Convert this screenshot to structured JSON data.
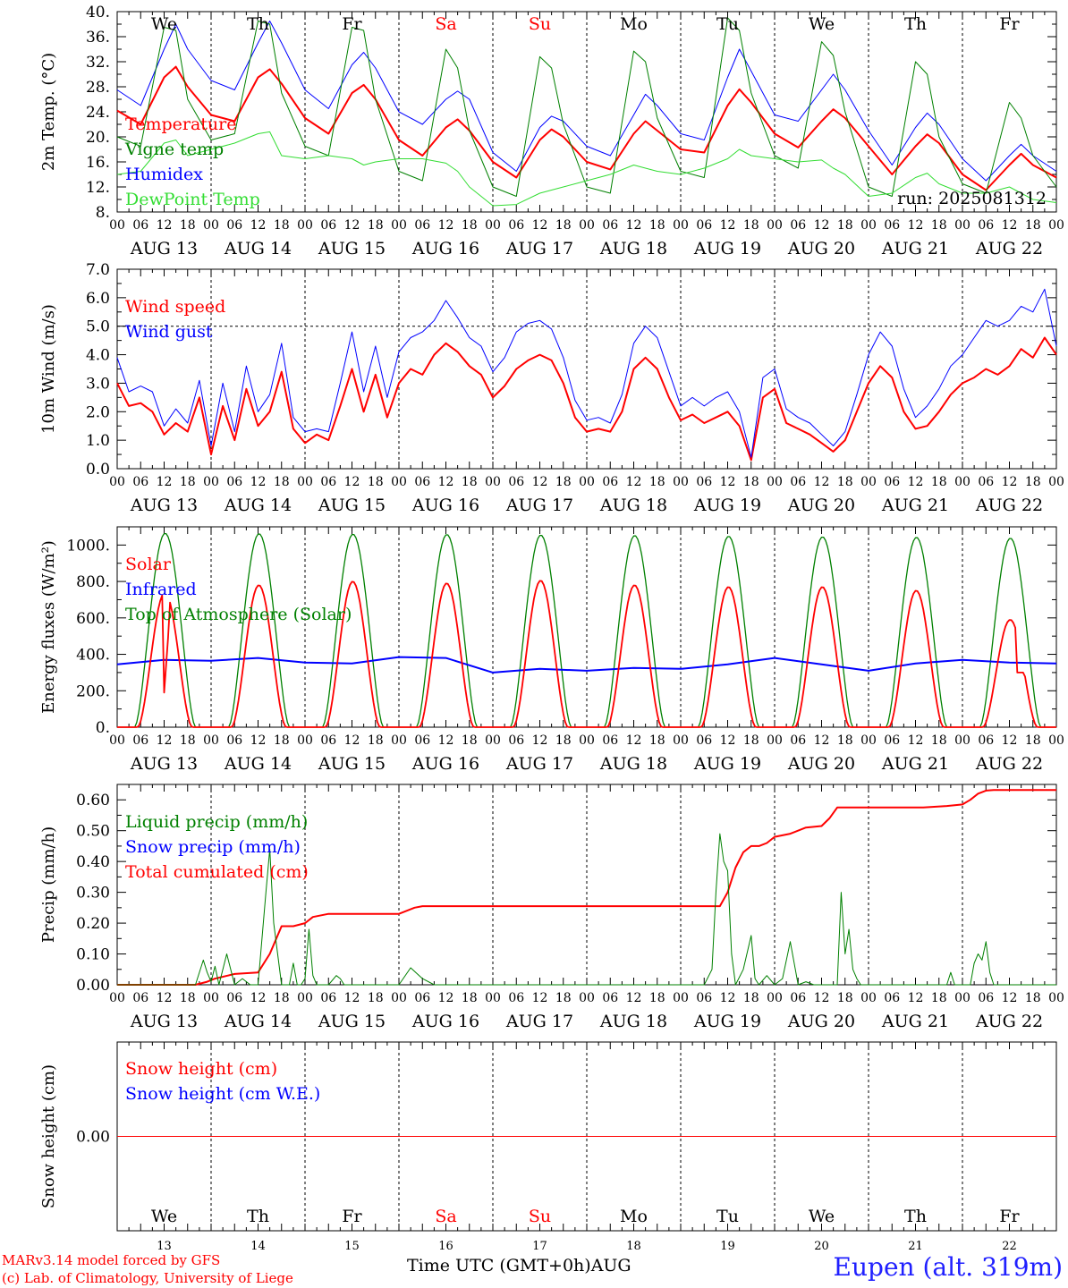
{
  "footer": {
    "model": "MARv3.14 model forced by GFS",
    "copyright": "(c) Lab. of Climatology, University of Liege",
    "time_axis": "Time UTC (GMT+0h)AUG",
    "station": "Eupen (alt. 319m)"
  },
  "colors": {
    "red": "#ff0000",
    "blue": "#0000ff",
    "green": "#008000",
    "lightgreen": "#33dd33",
    "black": "#000000"
  },
  "days": [
    "13",
    "14",
    "15",
    "16",
    "17",
    "18",
    "19",
    "20",
    "21",
    "22"
  ],
  "day_names": [
    {
      "name": "We",
      "weekend": false
    },
    {
      "name": "Th",
      "weekend": false
    },
    {
      "name": "Fr",
      "weekend": false
    },
    {
      "name": "Sa",
      "weekend": true
    },
    {
      "name": "Su",
      "weekend": true
    },
    {
      "name": "Mo",
      "weekend": false
    },
    {
      "name": "Tu",
      "weekend": false
    },
    {
      "name": "We",
      "weekend": false
    },
    {
      "name": "Th",
      "weekend": false
    },
    {
      "name": "Fr",
      "weekend": false
    }
  ],
  "date_labels": [
    "AUG 13",
    "AUG 14",
    "AUG 15",
    "AUG 16",
    "AUG 17",
    "AUG 18",
    "AUG 19",
    "AUG 20",
    "AUG 21",
    "AUG 22"
  ],
  "hour_ticks": [
    "00",
    "06",
    "12",
    "18"
  ],
  "chart_data": [
    {
      "type": "line",
      "id": "temp",
      "ylabel": "2m Temp. (°C)",
      "ylim": [
        8,
        40
      ],
      "yticks": [
        "8.",
        "12.",
        "16.",
        "20.",
        "24.",
        "28.",
        "32.",
        "36.",
        "40."
      ],
      "ytick_values": [
        8,
        12,
        16,
        20,
        24,
        28,
        32,
        36,
        40
      ],
      "annotation": "run: 2025081312",
      "legend": [
        "Temperature",
        "Vigne temp",
        "Humidex",
        "DewPoint Temp"
      ],
      "x_hours": [
        0,
        6,
        12,
        15,
        18,
        24,
        30,
        36,
        39,
        42,
        48,
        54,
        60,
        63,
        66,
        72,
        78,
        84,
        87,
        90,
        96,
        102,
        108,
        111,
        114,
        120,
        126,
        132,
        135,
        138,
        144,
        150,
        156,
        159,
        162,
        168,
        174,
        180,
        183,
        186,
        192,
        198,
        204,
        207,
        210,
        216,
        222,
        228,
        231,
        234,
        240
      ],
      "series": [
        {
          "name": "Temperature",
          "color": "red",
          "width": 2,
          "values": [
            24.2,
            22.0,
            29.5,
            31.2,
            28.0,
            23.5,
            22.5,
            29.5,
            30.8,
            28.5,
            23.0,
            20.5,
            27.0,
            28.3,
            26.0,
            19.5,
            17.0,
            21.5,
            22.8,
            21.0,
            16.0,
            13.5,
            19.5,
            21.2,
            20.0,
            16.0,
            14.8,
            20.5,
            22.5,
            21.0,
            18.0,
            17.5,
            25.0,
            27.6,
            25.5,
            20.5,
            18.3,
            22.5,
            24.4,
            23.0,
            18.5,
            14.0,
            18.5,
            20.4,
            19.0,
            14.0,
            11.5,
            15.5,
            17.3,
            15.5,
            13.5
          ]
        },
        {
          "name": "Humidex",
          "color": "blue",
          "width": 1,
          "values": [
            27.5,
            25.0,
            34.0,
            38.0,
            34.0,
            29.0,
            27.5,
            35.0,
            38.5,
            35.0,
            27.5,
            24.5,
            31.5,
            33.5,
            31.0,
            24.0,
            22.0,
            26.0,
            27.3,
            26.0,
            17.5,
            14.5,
            21.5,
            23.3,
            22.5,
            18.5,
            17.0,
            23.5,
            26.8,
            25.0,
            20.5,
            19.5,
            29.5,
            34.0,
            30.5,
            23.5,
            22.5,
            27.5,
            30.0,
            27.5,
            21.0,
            15.5,
            21.5,
            23.8,
            22.0,
            16.5,
            13.0,
            17.0,
            18.8,
            17.0,
            14.5
          ]
        },
        {
          "name": "Vigne temp",
          "color": "green",
          "width": 1,
          "values": [
            20.0,
            18.5,
            37.5,
            37.0,
            26.0,
            19.5,
            20.5,
            38.5,
            38.0,
            27.0,
            18.5,
            17.0,
            37.5,
            37.0,
            26.0,
            14.5,
            13.0,
            34.0,
            31.0,
            21.0,
            12.0,
            10.5,
            32.8,
            31.0,
            22.0,
            12.0,
            11.0,
            33.7,
            32.0,
            23.0,
            14.5,
            13.5,
            39.0,
            37.0,
            27.0,
            17.0,
            15.0,
            35.2,
            33.0,
            24.0,
            12.0,
            10.5,
            32.0,
            30.0,
            20.0,
            12.5,
            11.0,
            25.5,
            23.0,
            17.0,
            12.0
          ]
        },
        {
          "name": "DewPoint Temp",
          "color": "lightgreen",
          "width": 1,
          "values": [
            14.0,
            14.5,
            19.0,
            19.5,
            17.0,
            18.0,
            19.0,
            20.5,
            20.8,
            17.0,
            16.5,
            17.0,
            16.5,
            15.5,
            16.0,
            16.5,
            16.5,
            15.8,
            14.5,
            12.0,
            9.0,
            9.2,
            11.0,
            11.5,
            12.0,
            13.0,
            14.0,
            15.5,
            15.0,
            14.5,
            14.0,
            15.0,
            16.5,
            18.0,
            17.0,
            16.5,
            16.0,
            16.3,
            15.0,
            14.0,
            10.5,
            11.0,
            13.5,
            14.2,
            12.5,
            11.0,
            11.0,
            12.0,
            11.0,
            10.0,
            9.5
          ]
        }
      ]
    },
    {
      "type": "line",
      "id": "wind",
      "ylabel": "10m Wind (m/s)",
      "ylim": [
        0,
        7
      ],
      "yticks": [
        "0.0",
        "1.0",
        "2.0",
        "3.0",
        "4.0",
        "5.0",
        "6.0",
        "7.0"
      ],
      "ytick_values": [
        0,
        1,
        2,
        3,
        4,
        5,
        6,
        7
      ],
      "reference_line": 5.0,
      "legend": [
        "Wind speed",
        "Wind gust"
      ],
      "x_hours": [
        0,
        3,
        6,
        9,
        12,
        15,
        18,
        21,
        24,
        27,
        30,
        33,
        36,
        39,
        42,
        45,
        48,
        51,
        54,
        57,
        60,
        63,
        66,
        69,
        72,
        75,
        78,
        81,
        84,
        87,
        90,
        93,
        96,
        99,
        102,
        105,
        108,
        111,
        114,
        117,
        120,
        123,
        126,
        129,
        132,
        135,
        138,
        141,
        144,
        147,
        150,
        153,
        156,
        159,
        162,
        165,
        168,
        171,
        174,
        177,
        180,
        183,
        186,
        189,
        192,
        195,
        198,
        201,
        204,
        207,
        210,
        213,
        216,
        219,
        222,
        225,
        228,
        231,
        234,
        237,
        240
      ],
      "series": [
        {
          "name": "Wind speed",
          "color": "red",
          "width": 2,
          "values": [
            3.0,
            2.2,
            2.3,
            2.0,
            1.2,
            1.6,
            1.3,
            2.5,
            0.5,
            2.2,
            1.0,
            2.8,
            1.5,
            2.0,
            3.4,
            1.4,
            0.9,
            1.2,
            1.0,
            2.2,
            3.5,
            2.0,
            3.3,
            1.8,
            3.0,
            3.5,
            3.3,
            4.0,
            4.4,
            4.1,
            3.6,
            3.3,
            2.5,
            2.9,
            3.5,
            3.8,
            4.0,
            3.8,
            3.0,
            1.8,
            1.3,
            1.4,
            1.3,
            2.0,
            3.5,
            3.9,
            3.5,
            2.5,
            1.7,
            1.9,
            1.6,
            1.8,
            2.0,
            1.5,
            0.3,
            2.5,
            2.8,
            1.6,
            1.4,
            1.2,
            0.9,
            0.6,
            1.0,
            2.0,
            3.0,
            3.6,
            3.2,
            2.0,
            1.4,
            1.5,
            2.0,
            2.6,
            3.0,
            3.2,
            3.5,
            3.3,
            3.6,
            4.2,
            3.9,
            4.6,
            4.0
          ]
        },
        {
          "name": "Wind gust",
          "color": "blue",
          "width": 1,
          "values": [
            3.9,
            2.7,
            2.9,
            2.7,
            1.5,
            2.1,
            1.6,
            3.1,
            0.8,
            3.0,
            1.3,
            3.6,
            2.0,
            2.6,
            4.4,
            1.8,
            1.3,
            1.4,
            1.3,
            3.0,
            4.8,
            2.7,
            4.3,
            2.5,
            4.1,
            4.6,
            4.8,
            5.2,
            5.9,
            5.3,
            4.6,
            4.3,
            3.4,
            3.9,
            4.8,
            5.1,
            5.2,
            4.9,
            3.9,
            2.4,
            1.7,
            1.8,
            1.6,
            2.6,
            4.4,
            5.0,
            4.6,
            3.4,
            2.2,
            2.5,
            2.2,
            2.5,
            2.7,
            2.0,
            0.4,
            3.2,
            3.5,
            2.1,
            1.8,
            1.6,
            1.2,
            0.8,
            1.3,
            2.6,
            4.0,
            4.8,
            4.3,
            2.8,
            1.8,
            2.2,
            2.8,
            3.6,
            4.0,
            4.6,
            5.2,
            5.0,
            5.2,
            5.7,
            5.5,
            6.3,
            4.3
          ]
        }
      ]
    },
    {
      "type": "line",
      "id": "energy",
      "ylabel": "Energy fluxes (W/m²)",
      "ylim": [
        0,
        1100
      ],
      "yticks": [
        "0.",
        "200.",
        "400.",
        "600.",
        "800.",
        "1000."
      ],
      "ytick_values": [
        0,
        200,
        400,
        600,
        800,
        1000
      ],
      "legend": [
        "Solar",
        "Infrared",
        "Top of Atmosphere (Solar)"
      ],
      "solar_peak": [
        740,
        780,
        800,
        790,
        805,
        780,
        770,
        770,
        750,
        590
      ],
      "toa_peak": [
        1065,
        1062,
        1060,
        1058,
        1055,
        1052,
        1048,
        1045,
        1042,
        1038
      ],
      "x_hours": [
        0,
        12,
        24,
        36,
        48,
        60,
        72,
        84,
        96,
        108,
        120,
        132,
        144,
        156,
        168,
        180,
        192,
        204,
        216,
        228,
        240
      ],
      "series": [
        {
          "name": "Infrared",
          "color": "blue",
          "width": 2,
          "values": [
            345,
            370,
            365,
            380,
            355,
            350,
            385,
            380,
            300,
            320,
            310,
            325,
            320,
            345,
            380,
            345,
            310,
            350,
            370,
            355,
            350
          ]
        }
      ]
    },
    {
      "type": "line",
      "id": "precip",
      "ylabel": "Precip (mm/h)",
      "ylim": [
        0,
        0.65
      ],
      "yticks": [
        "0.00",
        "0.10",
        "0.20",
        "0.30",
        "0.40",
        "0.50",
        "0.60"
      ],
      "ytick_values": [
        0,
        0.1,
        0.2,
        0.3,
        0.4,
        0.5,
        0.6
      ],
      "legend": [
        "Liquid precip (mm/h)",
        "Snow precip (mm/h)",
        "Total cumulated (cm)"
      ],
      "series": [
        {
          "name": "Total cumulated (cm)",
          "color": "red",
          "width": 2,
          "x_hours": [
            0,
            20,
            23,
            25,
            30,
            36,
            39,
            42,
            45,
            48,
            50,
            54,
            60,
            66,
            72,
            76,
            78,
            80,
            84,
            90,
            96,
            102,
            108,
            114,
            120,
            126,
            132,
            138,
            144,
            150,
            154,
            156,
            158,
            160,
            162,
            164,
            166,
            168,
            172,
            176,
            180,
            182,
            184,
            192,
            198,
            204,
            206,
            212,
            216,
            218,
            220,
            222,
            224,
            240
          ],
          "values": [
            0.0,
            0.0,
            0.01,
            0.02,
            0.035,
            0.04,
            0.1,
            0.19,
            0.19,
            0.2,
            0.22,
            0.23,
            0.23,
            0.23,
            0.23,
            0.25,
            0.255,
            0.255,
            0.255,
            0.255,
            0.255,
            0.255,
            0.255,
            0.255,
            0.255,
            0.255,
            0.255,
            0.255,
            0.255,
            0.255,
            0.255,
            0.3,
            0.38,
            0.43,
            0.45,
            0.45,
            0.46,
            0.48,
            0.49,
            0.51,
            0.515,
            0.54,
            0.575,
            0.575,
            0.575,
            0.575,
            0.575,
            0.58,
            0.585,
            0.6,
            0.62,
            0.63,
            0.632,
            0.632
          ]
        },
        {
          "name": "Liquid precip (mm/h)",
          "color": "green",
          "width": 1,
          "x_hours": [
            0,
            20,
            22,
            23,
            24,
            25,
            26,
            28,
            30,
            32,
            34,
            36,
            38,
            39,
            40,
            41,
            42,
            44,
            45,
            46,
            47,
            48,
            49,
            50,
            51,
            52,
            54,
            56,
            57,
            58,
            60,
            72,
            75,
            78,
            81,
            84,
            150,
            152,
            153,
            154,
            155,
            156,
            157,
            158,
            160,
            162,
            163,
            164,
            166,
            168,
            170,
            172,
            174,
            176,
            178,
            182,
            184,
            185,
            186,
            187,
            188,
            189,
            190,
            206,
            212,
            213,
            214,
            218,
            219,
            220,
            221,
            222,
            223,
            224,
            226,
            240
          ],
          "values": [
            0,
            0,
            0.08,
            0.04,
            0.01,
            0.06,
            0.0,
            0.1,
            0.0,
            0.02,
            0.0,
            0.0,
            0.3,
            0.44,
            0.2,
            0.1,
            0.0,
            0.0,
            0.07,
            0.0,
            0.0,
            0.02,
            0.18,
            0.03,
            0.0,
            0.0,
            0.0,
            0.03,
            0.02,
            0.0,
            0.0,
            0.0,
            0.055,
            0.02,
            0.0,
            0.0,
            0.0,
            0.05,
            0.3,
            0.49,
            0.4,
            0.37,
            0.1,
            0.0,
            0.05,
            0.16,
            0.02,
            0.0,
            0.03,
            0.0,
            0.02,
            0.14,
            0.0,
            0.01,
            0.0,
            0.0,
            0.0,
            0.3,
            0.1,
            0.18,
            0.05,
            0.02,
            0.0,
            0.0,
            0.0,
            0.04,
            0.0,
            0.0,
            0.07,
            0.1,
            0.08,
            0.14,
            0.04,
            0.0,
            0.0,
            0.0
          ]
        }
      ]
    },
    {
      "type": "line",
      "id": "snow",
      "ylabel": "Snow height (cm)",
      "ylim": [
        -1,
        1
      ],
      "yticks": [
        "0.00"
      ],
      "ytick_values": [
        0
      ],
      "legend": [
        "Snow height (cm)",
        "Snow height (cm W.E.)"
      ],
      "x_hours": [
        0,
        240
      ],
      "series": [
        {
          "name": "Snow height (cm)",
          "color": "red",
          "width": 1,
          "values": [
            0,
            0
          ]
        }
      ]
    }
  ]
}
